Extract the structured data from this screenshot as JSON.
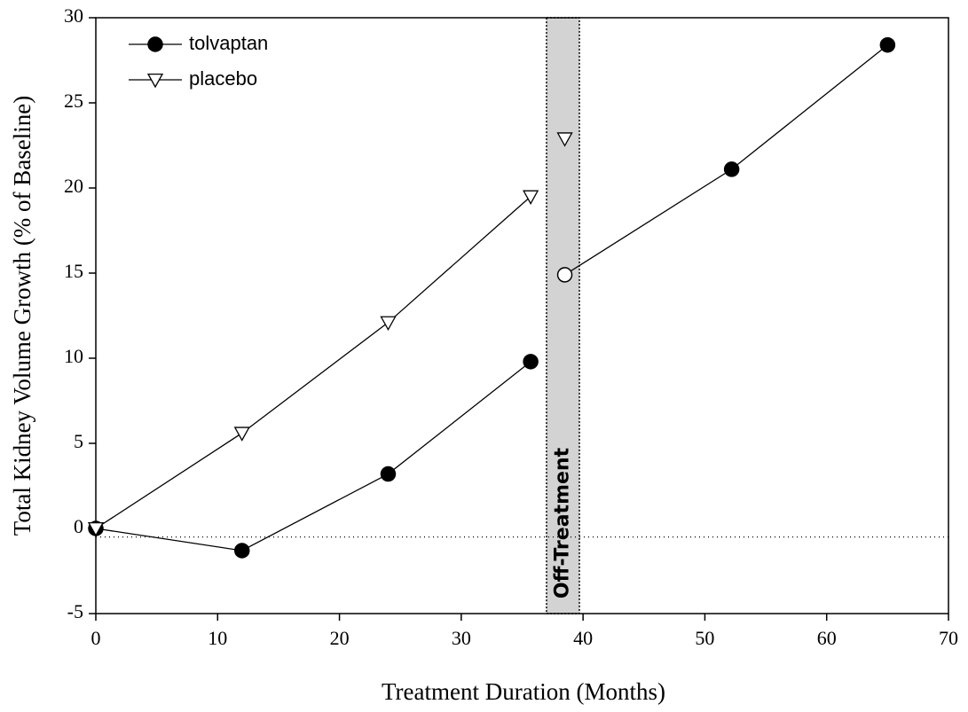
{
  "chart_data": {
    "type": "line",
    "xlabel": "Treatment Duration (Months)",
    "ylabel": "Total Kidney Volume Growth (% of Baseline)",
    "xlim": [
      0,
      70
    ],
    "xticks": [
      0,
      10,
      20,
      30,
      40,
      50,
      60,
      70
    ],
    "ylim": [
      -5,
      30
    ],
    "yticks": [
      -5,
      0,
      5,
      10,
      15,
      20,
      25,
      30
    ],
    "legend": "upper left",
    "reference_line": -0.5,
    "shaded_region": {
      "label": "Off-Treatment",
      "xrange": [
        37,
        39.7
      ],
      "color": "#d3d3d3"
    },
    "series": [
      {
        "name": "tolvaptan",
        "color": "#000000",
        "marker": "circle",
        "x": [
          0,
          12,
          24,
          35.7,
          null,
          38.5,
          52.2,
          65
        ],
        "values": [
          0,
          -1.3,
          3.2,
          9.8,
          null,
          14.9,
          21.1,
          28.4
        ],
        "marker_fill": [
          "#000000",
          "#000000",
          "#000000",
          "#000000",
          null,
          "#ffffff",
          "#000000",
          "#000000"
        ]
      },
      {
        "name": "placebo",
        "color": "#000000",
        "marker": "triangle-down",
        "x": [
          0,
          12,
          24,
          35.7,
          null,
          38.5
        ],
        "values": [
          0,
          5.6,
          12.1,
          19.5,
          null,
          22.9
        ],
        "marker_fill": [
          "#ffffff",
          "#ffffff",
          "#ffffff",
          "#ffffff",
          null,
          "#ffffff"
        ]
      }
    ]
  }
}
